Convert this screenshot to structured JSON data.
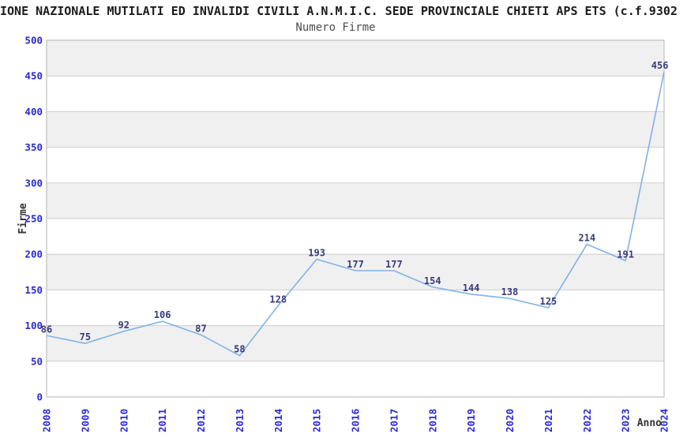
{
  "header": {
    "title": "IONE NAZIONALE MUTILATI ED INVALIDI CIVILI A.N.M.I.C. SEDE PROVINCIALE CHIETI APS ETS (c.f.9302",
    "subtitle": "Numero Firme"
  },
  "chart_data": {
    "type": "line",
    "title": "Numero Firme",
    "xlabel": "Anno",
    "ylabel": "Firme",
    "categories": [
      "2008",
      "2009",
      "2010",
      "2011",
      "2012",
      "2013",
      "2014",
      "2015",
      "2016",
      "2017",
      "2018",
      "2019",
      "2020",
      "2021",
      "2022",
      "2023",
      "2024"
    ],
    "values": [
      86,
      75,
      92,
      106,
      87,
      58,
      128,
      193,
      177,
      177,
      154,
      144,
      138,
      125,
      214,
      191,
      456
    ],
    "ylim": [
      0,
      500
    ],
    "ytick_step": 50,
    "yticks": [
      0,
      50,
      100,
      150,
      200,
      250,
      300,
      350,
      400,
      450,
      500
    ],
    "grid": "horizontal",
    "alternating_bands": true,
    "legend": "none",
    "markers": "none",
    "x_tick_rotation": -90,
    "colors": {
      "line": "#7fb2e8",
      "tick_label": "#2a2ad2",
      "data_label": "#383a7a",
      "band": "#f0f0f0",
      "gridline": "#cdcdcd",
      "plot_border": "#b3b3b3",
      "title": "#1c1c1c",
      "subtitle": "#4d4d4d",
      "axis_label": "#333333"
    }
  }
}
